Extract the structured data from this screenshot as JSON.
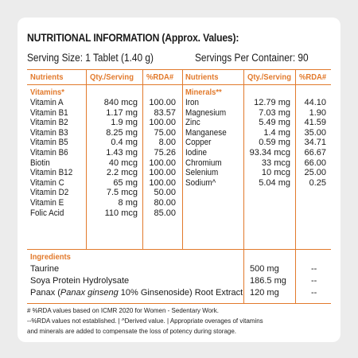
{
  "title": "NUTRITIONAL INFORMATION (Approx. Values):",
  "serving_size": "Serving Size: 1 Tablet (1.40 g)",
  "servings_per_container": "Servings Per Container: 90",
  "headers": {
    "nutrients": "Nutrients",
    "qty": "Qty./Serving",
    "rda": "%RDA#",
    "nutrients2": "Nutrients",
    "qty2": "Qty./Serving",
    "rda2": "%RDA#"
  },
  "vitamins_label": "Vitamins*",
  "minerals_label": "Minerals**",
  "vitamins": [
    {
      "name": "Vitamin A",
      "qty": "840 mcg",
      "rda": "100.00"
    },
    {
      "name": "Vitamin B1",
      "qty": "1.17 mg",
      "rda": "83.57"
    },
    {
      "name": "Vitamin B2",
      "qty": "1.9 mg",
      "rda": "100.00"
    },
    {
      "name": "Vitamin B3",
      "qty": "8.25 mg",
      "rda": "75.00"
    },
    {
      "name": "Vitamin B5",
      "qty": "0.4 mg",
      "rda": "8.00"
    },
    {
      "name": "Vitamin B6",
      "qty": "1.43 mg",
      "rda": "75.26"
    },
    {
      "name": "Biotin",
      "qty": "40 mcg",
      "rda": "100.00"
    },
    {
      "name": "Vitamin B12",
      "qty": "2.2 mcg",
      "rda": "100.00"
    },
    {
      "name": "Vitamin C",
      "qty": "65 mg",
      "rda": "100.00"
    },
    {
      "name": "Vitamin D2",
      "qty": "7.5 mcg",
      "rda": "50.00"
    },
    {
      "name": "Vitamin E",
      "qty": "8 mg",
      "rda": "80.00"
    },
    {
      "name": "Folic Acid",
      "qty": "110 mcg",
      "rda": "85.00"
    }
  ],
  "minerals": [
    {
      "name": "Iron",
      "qty": "12.79 mg",
      "rda": "44.10"
    },
    {
      "name": "Magnesium",
      "qty": "7.03 mg",
      "rda": "1.90"
    },
    {
      "name": "Zinc",
      "qty": "5.49 mg",
      "rda": "41.59"
    },
    {
      "name": "Manganese",
      "qty": "1.4 mg",
      "rda": "35.00"
    },
    {
      "name": "Copper",
      "qty": "0.59 mg",
      "rda": "34.71"
    },
    {
      "name": "Iodine",
      "qty": "93.34 mcg",
      "rda": "66.67"
    },
    {
      "name": "Chromium",
      "qty": "33 mcg",
      "rda": "66.00"
    },
    {
      "name": "Selenium",
      "qty": "10 mcg",
      "rda": "25.00"
    },
    {
      "name": "Sodium^",
      "qty": "5.04 mg",
      "rda": "0.25"
    }
  ],
  "ingredients_label": "Ingredients",
  "ingredients": [
    {
      "name": "Taurine",
      "qty": "500 mg",
      "rda": "--"
    },
    {
      "name": "Soya Protein Hydrolysate",
      "qty": "186.5 mg",
      "rda": "--"
    },
    {
      "name_pre": "Panax (",
      "name_italic": "Panax ginseng",
      "name_post": " 10% Ginsenoside) Root Extract",
      "qty": "120 mg",
      "rda": "--"
    }
  ],
  "footnotes": [
    "# %RDA values based on ICMR 2020 for Women - Sedentary Work.",
    "--%RDA values not established. | ^Derived value. | Appropriate overages of vitamins",
    "and minerals are added to compensate the loss of potency during storage."
  ],
  "colors": {
    "accent": "#e27a2c",
    "card": "#ffffff",
    "background": "#ececec"
  }
}
